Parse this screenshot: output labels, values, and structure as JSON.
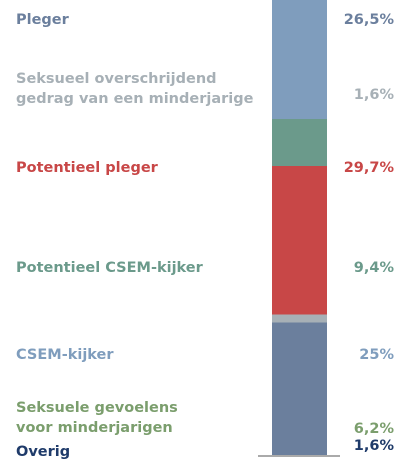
{
  "chart_data": {
    "type": "stacked-bar",
    "categories": [
      "Pleger",
      "Seksueel overschrijdend gedrag van een minderjarige",
      "Potentieel pleger",
      "Potentieel CSEM-kijker",
      "CSEM-kijker",
      "Seksuele gevoelens voor minderjarigen",
      "Overig"
    ],
    "values": [
      26.5,
      1.6,
      29.7,
      9.4,
      25,
      6.2,
      1.6
    ],
    "value_labels": [
      "26,5%",
      "1,6%",
      "29,7%",
      "9,4%",
      "25%",
      "6,2%",
      "1,6%"
    ],
    "colors": [
      "#6b7f9d",
      "#a7b0b6",
      "#c84747",
      "#6b9a8b",
      "#7f9dbd",
      "#7b9e6d",
      "#1f3b6a"
    ]
  }
}
